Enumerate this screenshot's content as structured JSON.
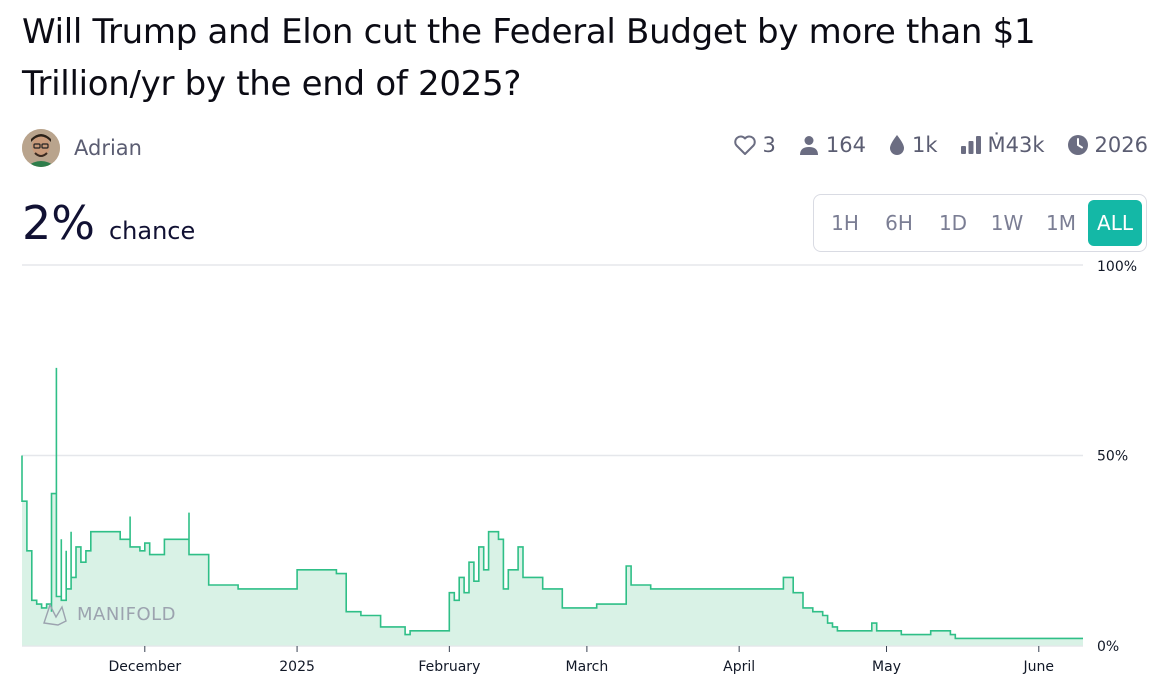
{
  "market": {
    "title": "Will Trump and Elon cut the Federal Budget by more than $1 Trillion/yr by the end of 2025?",
    "author": "Adrian",
    "stats": {
      "likes": "3",
      "traders": "164",
      "liquidity": "1k",
      "volume": "Ṁ43k",
      "close": "2026"
    },
    "probability": "2%",
    "probability_label": "chance",
    "periods": [
      "1H",
      "6H",
      "1D",
      "1W",
      "1M",
      "ALL"
    ],
    "active_period": "ALL",
    "watermark": "MANIFOLD"
  },
  "colors": {
    "line": "#2fbf87",
    "fill": "#d9f2e6",
    "accent": "#14b8a6"
  },
  "chart_data": {
    "type": "area",
    "y_ticks": [
      "100%",
      "50%",
      "0%"
    ],
    "ylim": [
      0,
      100
    ],
    "xlim": [
      "2024-11-06",
      "2025-06-10"
    ],
    "x_ticks": [
      {
        "label": "December",
        "date": "2024-12-01"
      },
      {
        "label": "2025",
        "date": "2025-01-01"
      },
      {
        "label": "February",
        "date": "2025-02-01"
      },
      {
        "label": "March",
        "date": "2025-03-01"
      },
      {
        "label": "April",
        "date": "2025-04-01"
      },
      {
        "label": "May",
        "date": "2025-05-01"
      },
      {
        "label": "June",
        "date": "2025-06-01"
      }
    ],
    "series": [
      {
        "values": [
          [
            "2024-11-06",
            50
          ],
          [
            "2024-11-06",
            38
          ],
          [
            "2024-11-07",
            33
          ],
          [
            "2024-11-07",
            25
          ],
          [
            "2024-11-08",
            12
          ],
          [
            "2024-11-09",
            11
          ],
          [
            "2024-11-10",
            10
          ],
          [
            "2024-11-11",
            11
          ],
          [
            "2024-11-12",
            9
          ],
          [
            "2024-11-12",
            40
          ],
          [
            "2024-11-13",
            73
          ],
          [
            "2024-11-13",
            13
          ],
          [
            "2024-11-14",
            28
          ],
          [
            "2024-11-14",
            12
          ],
          [
            "2024-11-15",
            25
          ],
          [
            "2024-11-15",
            15
          ],
          [
            "2024-11-16",
            30
          ],
          [
            "2024-11-16",
            18
          ],
          [
            "2024-11-17",
            26
          ],
          [
            "2024-11-18",
            22
          ],
          [
            "2024-11-19",
            25
          ],
          [
            "2024-11-20",
            25
          ],
          [
            "2024-11-20",
            30
          ],
          [
            "2024-11-26",
            30
          ],
          [
            "2024-11-26",
            28
          ],
          [
            "2024-11-28",
            28
          ],
          [
            "2024-11-28",
            34
          ],
          [
            "2024-11-28",
            26
          ],
          [
            "2024-11-30",
            26
          ],
          [
            "2024-11-30",
            25
          ],
          [
            "2024-12-01",
            25
          ],
          [
            "2024-12-01",
            27
          ],
          [
            "2024-12-02",
            24
          ],
          [
            "2024-12-05",
            24
          ],
          [
            "2024-12-05",
            28
          ],
          [
            "2024-12-10",
            28
          ],
          [
            "2024-12-10",
            35
          ],
          [
            "2024-12-10",
            24
          ],
          [
            "2024-12-14",
            24
          ],
          [
            "2024-12-14",
            16
          ],
          [
            "2024-12-20",
            16
          ],
          [
            "2024-12-20",
            15
          ],
          [
            "2025-01-01",
            15
          ],
          [
            "2025-01-01",
            20
          ],
          [
            "2025-01-09",
            20
          ],
          [
            "2025-01-09",
            19
          ],
          [
            "2025-01-11",
            19
          ],
          [
            "2025-01-11",
            9
          ],
          [
            "2025-01-14",
            9
          ],
          [
            "2025-01-14",
            8
          ],
          [
            "2025-01-18",
            8
          ],
          [
            "2025-01-18",
            5
          ],
          [
            "2025-01-23",
            5
          ],
          [
            "2025-01-23",
            3
          ],
          [
            "2025-01-24",
            4
          ],
          [
            "2025-02-01",
            4
          ],
          [
            "2025-02-01",
            14
          ],
          [
            "2025-02-02",
            12
          ],
          [
            "2025-02-03",
            18
          ],
          [
            "2025-02-04",
            14
          ],
          [
            "2025-02-05",
            22
          ],
          [
            "2025-02-06",
            17
          ],
          [
            "2025-02-07",
            26
          ],
          [
            "2025-02-08",
            20
          ],
          [
            "2025-02-09",
            30
          ],
          [
            "2025-02-11",
            28
          ],
          [
            "2025-02-12",
            15
          ],
          [
            "2025-02-13",
            20
          ],
          [
            "2025-02-15",
            26
          ],
          [
            "2025-02-16",
            18
          ],
          [
            "2025-02-18",
            18
          ],
          [
            "2025-02-20",
            18
          ],
          [
            "2025-02-20",
            15
          ],
          [
            "2025-02-24",
            15
          ],
          [
            "2025-02-24",
            10
          ],
          [
            "2025-03-03",
            10
          ],
          [
            "2025-03-03",
            11
          ],
          [
            "2025-03-08",
            11
          ],
          [
            "2025-03-09",
            21
          ],
          [
            "2025-03-10",
            16
          ],
          [
            "2025-03-14",
            16
          ],
          [
            "2025-03-14",
            15
          ],
          [
            "2025-04-10",
            15
          ],
          [
            "2025-04-10",
            18
          ],
          [
            "2025-04-12",
            14
          ],
          [
            "2025-04-14",
            10
          ],
          [
            "2025-04-16",
            9
          ],
          [
            "2025-04-18",
            8
          ],
          [
            "2025-04-19",
            6
          ],
          [
            "2025-04-20",
            5
          ],
          [
            "2025-04-21",
            4
          ],
          [
            "2025-04-28",
            4
          ],
          [
            "2025-04-28",
            6
          ],
          [
            "2025-04-29",
            4
          ],
          [
            "2025-05-04",
            4
          ],
          [
            "2025-05-04",
            3
          ],
          [
            "2025-05-09",
            3
          ],
          [
            "2025-05-10",
            4
          ],
          [
            "2025-05-13",
            4
          ],
          [
            "2025-05-14",
            3
          ],
          [
            "2025-05-15",
            2
          ],
          [
            "2025-06-09",
            2
          ],
          [
            "2025-06-10",
            2
          ]
        ]
      }
    ]
  }
}
